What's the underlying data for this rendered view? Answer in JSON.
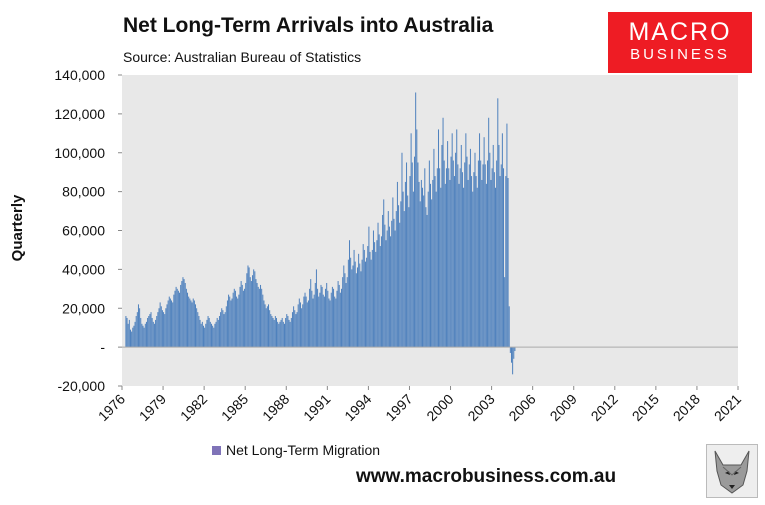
{
  "header": {
    "title": "Net Long-Term Arrivals into Australia",
    "subtitle": "Source: Australian Bureau of Statistics"
  },
  "logo": {
    "line1": "MACRO",
    "line2": "BUSINESS"
  },
  "footer": {
    "website": "www.macrobusiness.com.au"
  },
  "colors": {
    "series": "#4f81bd",
    "logo_bg": "#ee1c24",
    "plot_bg": "#e8e8e8",
    "legend_swatch": "#7f73b8"
  },
  "icons": {
    "mascot": "wolf-mascot-icon"
  },
  "chart_data": {
    "type": "bar",
    "title": "Net Long-Term Arrivals into Australia",
    "subtitle": "Source: Australian Bureau of Statistics",
    "ylabel": "Quarterly",
    "xlabel": "",
    "ylim": [
      -20000,
      140000
    ],
    "yticks": [
      -20000,
      0,
      20000,
      40000,
      60000,
      80000,
      100000,
      120000,
      140000
    ],
    "ytick_labels": [
      "-20,000",
      "-",
      "20,000",
      "40,000",
      "60,000",
      "80,000",
      "100,000",
      "120,000",
      "140,000"
    ],
    "xlim": [
      1976,
      2021
    ],
    "xticks": [
      1976,
      1979,
      1982,
      1985,
      1988,
      1991,
      1994,
      1997,
      2000,
      2003,
      2006,
      2009,
      2012,
      2015,
      2018,
      2021
    ],
    "xtick_labels": [
      "1976",
      "1979",
      "1982",
      "1985",
      "1988",
      "1991",
      "1994",
      "1997",
      "2000",
      "2003",
      "2006",
      "2009",
      "2012",
      "2015",
      "2018",
      "2021"
    ],
    "grid": false,
    "legend": {
      "position": "bottom-left",
      "entries": [
        "Net Long-Term Migration"
      ]
    },
    "series": [
      {
        "name": "Net Long-Term Migration",
        "color": "#4f81bd",
        "start_year": 1976.25,
        "step_years": 0.0833333,
        "values": [
          16000,
          15000,
          12000,
          14000,
          9000,
          8000,
          10000,
          11000,
          13000,
          16000,
          18000,
          22000,
          20000,
          15000,
          12000,
          11000,
          10000,
          12000,
          13000,
          15000,
          16000,
          17000,
          18000,
          15000,
          13000,
          12000,
          14000,
          16000,
          18000,
          20000,
          23000,
          21000,
          19000,
          18000,
          17000,
          20000,
          22000,
          24000,
          26000,
          25000,
          24000,
          23000,
          27000,
          29000,
          31000,
          30000,
          29000,
          28000,
          32000,
          34000,
          36000,
          35000,
          33000,
          30000,
          28000,
          26000,
          25000,
          24000,
          23000,
          25000,
          24000,
          22000,
          20000,
          18000,
          16000,
          14000,
          12000,
          13000,
          11000,
          10000,
          12000,
          14000,
          16000,
          15000,
          13000,
          12000,
          11000,
          10000,
          12000,
          13000,
          15000,
          14000,
          16000,
          18000,
          20000,
          19000,
          17000,
          18000,
          21000,
          24000,
          27000,
          26000,
          24000,
          25000,
          28000,
          30000,
          29000,
          26000,
          25000,
          27000,
          31000,
          34000,
          32000,
          29000,
          30000,
          33000,
          38000,
          42000,
          41000,
          36000,
          34000,
          37000,
          40000,
          39000,
          35000,
          33000,
          31000,
          30000,
          32000,
          30000,
          27000,
          24000,
          22000,
          20000,
          21000,
          22000,
          19000,
          17000,
          16000,
          15000,
          14000,
          16000,
          15000,
          13000,
          12000,
          13000,
          14000,
          15000,
          13000,
          12000,
          15000,
          17000,
          16000,
          14000,
          13000,
          15000,
          18000,
          21000,
          19000,
          17000,
          18000,
          22000,
          25000,
          23000,
          20000,
          22000,
          26000,
          28000,
          26000,
          23000,
          24000,
          30000,
          35000,
          29000,
          25000,
          27000,
          33000,
          40000,
          30000,
          26000,
          28000,
          32000,
          31000,
          27000,
          26000,
          30000,
          33000,
          29000,
          25000,
          24000,
          28000,
          31000,
          30000,
          26000,
          25000,
          29000,
          34000,
          32000,
          28000,
          30000,
          36000,
          42000,
          38000,
          33000,
          36000,
          45000,
          55000,
          46000,
          40000,
          42000,
          50000,
          44000,
          38000,
          41000,
          48000,
          43000,
          39000,
          45000,
          53000,
          50000,
          44000,
          46000,
          52000,
          62000,
          49000,
          45000,
          50000,
          60000,
          54000,
          49000,
          55000,
          64000,
          58000,
          52000,
          57000,
          68000,
          76000,
          63000,
          55000,
          60000,
          70000,
          62000,
          57000,
          65000,
          77000,
          66000,
          60000,
          70000,
          85000,
          73000,
          64000,
          75000,
          100000,
          80000,
          70000,
          85000,
          95000,
          78000,
          72000,
          88000,
          110000,
          95000,
          80000,
          98000,
          131000,
          112000,
          95000,
          85000,
          75000,
          86000,
          82000,
          78000,
          92000,
          72000,
          68000,
          80000,
          96000,
          84000,
          76000,
          86000,
          102000,
          88000,
          80000,
          92000,
          112000,
          92000,
          82000,
          104000,
          118000,
          96000,
          84000,
          92000,
          106000,
          92000,
          86000,
          98000,
          110000,
          96000,
          88000,
          100000,
          112000,
          94000,
          84000,
          92000,
          104000,
          90000,
          82000,
          95000,
          110000,
          98000,
          86000,
          94000,
          102000,
          88000,
          80000,
          90000,
          100000,
          88000,
          82000,
          96000,
          110000,
          96000,
          86000,
          94000,
          108000,
          94000,
          84000,
          96000,
          118000,
          100000,
          86000,
          92000,
          104000,
          90000,
          82000,
          96000,
          128000,
          104000,
          88000,
          94000,
          110000,
          92000,
          36000,
          88000,
          115000,
          87000,
          21000,
          -3000,
          -8000,
          -14000,
          -6000,
          -2000
        ]
      }
    ]
  }
}
